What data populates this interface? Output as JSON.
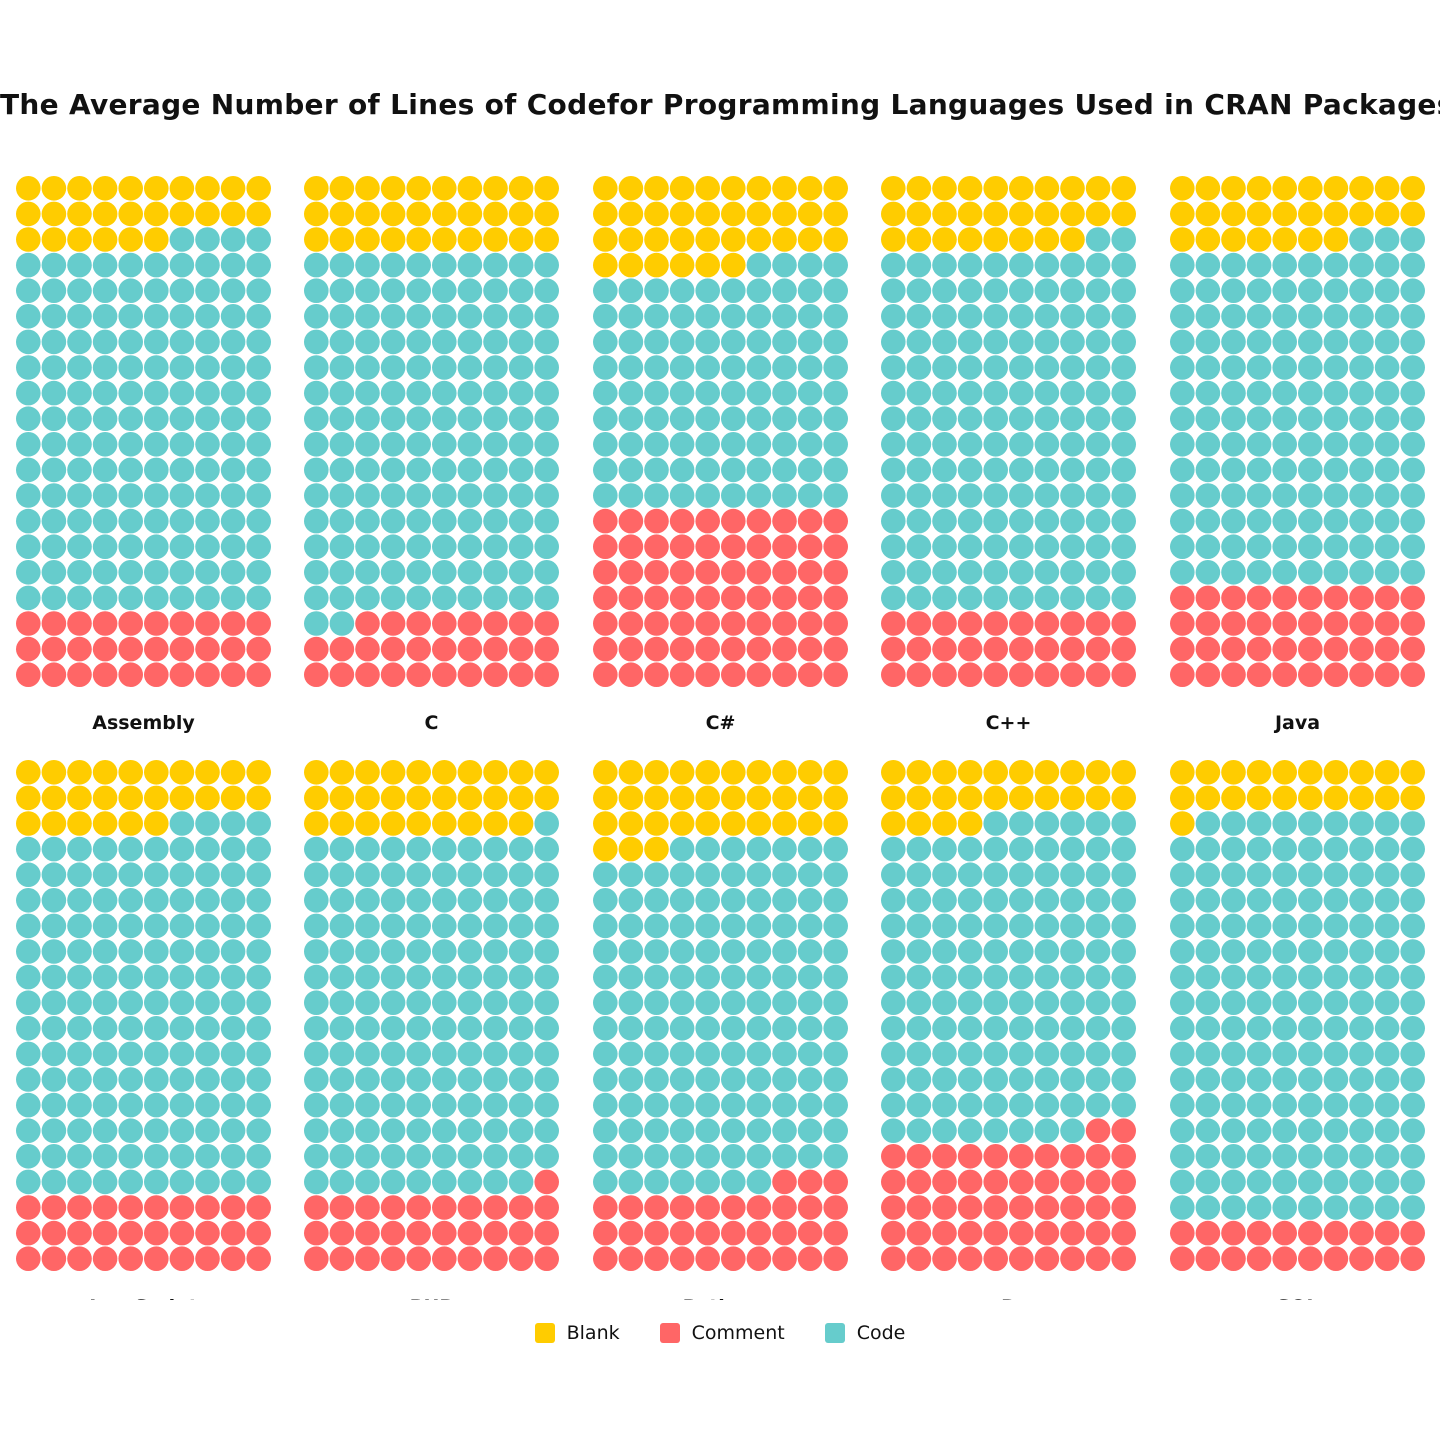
{
  "chart_data": {
    "type": "waffle",
    "title": "The Average Number of Lines of Codefor Programming Languages Used in CRAN Packages",
    "unit_count": 200,
    "grid": {
      "columns": 10,
      "rows": 20
    },
    "legend": {
      "placement": "bottom",
      "items": [
        {
          "key": "blank",
          "label": "Blank",
          "color": "#FFCC00"
        },
        {
          "key": "comment",
          "label": "Comment",
          "color": "#FF6666"
        },
        {
          "key": "code",
          "label": "Code",
          "color": "#66CCCC"
        }
      ]
    },
    "panels": [
      {
        "language": "Assembly",
        "blank": 26,
        "code": 144,
        "comment": 30
      },
      {
        "language": "C",
        "blank": 30,
        "code": 142,
        "comment": 28
      },
      {
        "language": "C#",
        "blank": 36,
        "code": 94,
        "comment": 70
      },
      {
        "language": "C++",
        "blank": 28,
        "code": 142,
        "comment": 30
      },
      {
        "language": "Java",
        "blank": 27,
        "code": 133,
        "comment": 40
      },
      {
        "language": "JavaScript",
        "blank": 26,
        "code": 144,
        "comment": 30
      },
      {
        "language": "PHP",
        "blank": 29,
        "code": 140,
        "comment": 31
      },
      {
        "language": "Python",
        "blank": 33,
        "code": 134,
        "comment": 33
      },
      {
        "language": "R",
        "blank": 24,
        "code": 124,
        "comment": 52
      },
      {
        "language": "SQL",
        "blank": 21,
        "code": 159,
        "comment": 20
      }
    ]
  }
}
